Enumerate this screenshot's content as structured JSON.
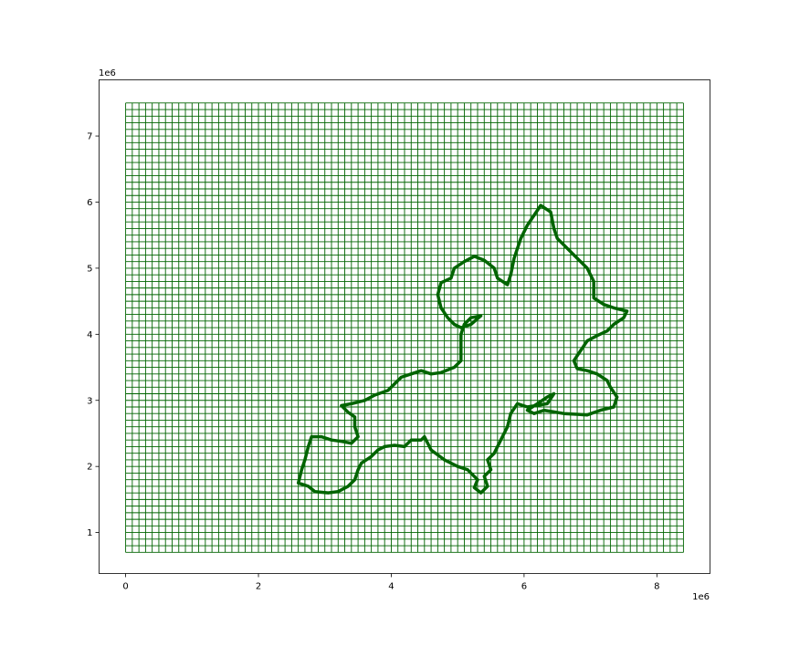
{
  "chart_data": {
    "type": "map",
    "title": "",
    "xlabel": "",
    "ylabel": "",
    "x_offset_label": "1e6",
    "y_offset_label": "1e6",
    "xlim": [
      -0.4,
      8.8
    ],
    "ylim": [
      0.38,
      7.85
    ],
    "xticks": [
      {
        "value": 0,
        "label": "0"
      },
      {
        "value": 2,
        "label": "2"
      },
      {
        "value": 4,
        "label": "4"
      },
      {
        "value": 6,
        "label": "6"
      },
      {
        "value": 8,
        "label": "8"
      }
    ],
    "yticks": [
      {
        "value": 1,
        "label": "1"
      },
      {
        "value": 2,
        "label": "2"
      },
      {
        "value": 3,
        "label": "3"
      },
      {
        "value": 4,
        "label": "4"
      },
      {
        "value": 5,
        "label": "5"
      },
      {
        "value": 6,
        "label": "6"
      },
      {
        "value": 7,
        "label": "7"
      }
    ],
    "grid": {
      "x_range": [
        0,
        8.4
      ],
      "y_range": [
        0.7,
        7.5
      ],
      "cell_size": 0.1,
      "color": "#006400"
    },
    "outline": {
      "color": "#006400",
      "points": [
        [
          6.25,
          5.95
        ],
        [
          6.4,
          5.85
        ],
        [
          6.45,
          5.6
        ],
        [
          6.5,
          5.45
        ],
        [
          6.75,
          5.2
        ],
        [
          6.95,
          5.0
        ],
        [
          7.05,
          4.8
        ],
        [
          7.05,
          4.55
        ],
        [
          7.2,
          4.45
        ],
        [
          7.35,
          4.4
        ],
        [
          7.55,
          4.35
        ],
        [
          7.5,
          4.25
        ],
        [
          7.35,
          4.15
        ],
        [
          7.25,
          4.05
        ],
        [
          7.1,
          3.98
        ],
        [
          6.95,
          3.9
        ],
        [
          6.85,
          3.75
        ],
        [
          6.75,
          3.6
        ],
        [
          6.8,
          3.48
        ],
        [
          6.95,
          3.45
        ],
        [
          7.1,
          3.4
        ],
        [
          7.25,
          3.3
        ],
        [
          7.3,
          3.2
        ],
        [
          7.4,
          3.05
        ],
        [
          7.35,
          2.9
        ],
        [
          7.15,
          2.85
        ],
        [
          6.95,
          2.78
        ],
        [
          6.6,
          2.8
        ],
        [
          6.3,
          2.85
        ],
        [
          6.15,
          2.8
        ],
        [
          6.05,
          2.85
        ],
        [
          6.2,
          2.95
        ],
        [
          6.35,
          3.05
        ],
        [
          6.45,
          3.1
        ],
        [
          6.35,
          2.95
        ],
        [
          6.05,
          2.9
        ],
        [
          5.9,
          2.95
        ],
        [
          5.8,
          2.8
        ],
        [
          5.75,
          2.6
        ],
        [
          5.65,
          2.4
        ],
        [
          5.55,
          2.2
        ],
        [
          5.45,
          2.1
        ],
        [
          5.5,
          1.95
        ],
        [
          5.4,
          1.85
        ],
        [
          5.45,
          1.7
        ],
        [
          5.35,
          1.6
        ],
        [
          5.25,
          1.68
        ],
        [
          5.3,
          1.8
        ],
        [
          5.15,
          1.95
        ],
        [
          5.0,
          2.0
        ],
        [
          4.8,
          2.1
        ],
        [
          4.6,
          2.25
        ],
        [
          4.5,
          2.45
        ],
        [
          4.45,
          2.4
        ],
        [
          4.3,
          2.4
        ],
        [
          4.2,
          2.3
        ],
        [
          4.05,
          2.32
        ],
        [
          3.9,
          2.3
        ],
        [
          3.8,
          2.25
        ],
        [
          3.7,
          2.15
        ],
        [
          3.55,
          2.05
        ],
        [
          3.5,
          1.95
        ],
        [
          3.45,
          1.8
        ],
        [
          3.35,
          1.7
        ],
        [
          3.2,
          1.62
        ],
        [
          3.05,
          1.6
        ],
        [
          2.85,
          1.62
        ],
        [
          2.75,
          1.7
        ],
        [
          2.6,
          1.75
        ],
        [
          2.65,
          1.95
        ],
        [
          2.7,
          2.1
        ],
        [
          2.75,
          2.3
        ],
        [
          2.8,
          2.45
        ],
        [
          2.95,
          2.45
        ],
        [
          3.1,
          2.4
        ],
        [
          3.25,
          2.38
        ],
        [
          3.4,
          2.35
        ],
        [
          3.5,
          2.45
        ],
        [
          3.45,
          2.6
        ],
        [
          3.45,
          2.75
        ],
        [
          3.35,
          2.82
        ],
        [
          3.25,
          2.92
        ],
        [
          3.4,
          2.95
        ],
        [
          3.6,
          3.0
        ],
        [
          3.75,
          3.08
        ],
        [
          3.95,
          3.15
        ],
        [
          4.05,
          3.25
        ],
        [
          4.15,
          3.35
        ],
        [
          4.3,
          3.4
        ],
        [
          4.45,
          3.45
        ],
        [
          4.6,
          3.4
        ],
        [
          4.75,
          3.42
        ],
        [
          4.95,
          3.5
        ],
        [
          5.05,
          3.6
        ],
        [
          5.05,
          3.8
        ],
        [
          5.05,
          4.0
        ],
        [
          5.1,
          4.15
        ],
        [
          5.2,
          4.25
        ],
        [
          5.35,
          4.28
        ],
        [
          5.2,
          4.15
        ],
        [
          5.05,
          4.1
        ],
        [
          4.95,
          4.15
        ],
        [
          4.85,
          4.25
        ],
        [
          4.75,
          4.4
        ],
        [
          4.7,
          4.6
        ],
        [
          4.75,
          4.78
        ],
        [
          4.9,
          4.85
        ],
        [
          4.95,
          5.0
        ],
        [
          5.1,
          5.1
        ],
        [
          5.25,
          5.18
        ],
        [
          5.4,
          5.12
        ],
        [
          5.55,
          5.0
        ],
        [
          5.6,
          4.85
        ],
        [
          5.75,
          4.75
        ],
        [
          5.8,
          4.9
        ],
        [
          5.85,
          5.15
        ],
        [
          5.95,
          5.45
        ],
        [
          6.05,
          5.65
        ],
        [
          6.15,
          5.8
        ],
        [
          6.25,
          5.95
        ]
      ]
    }
  }
}
